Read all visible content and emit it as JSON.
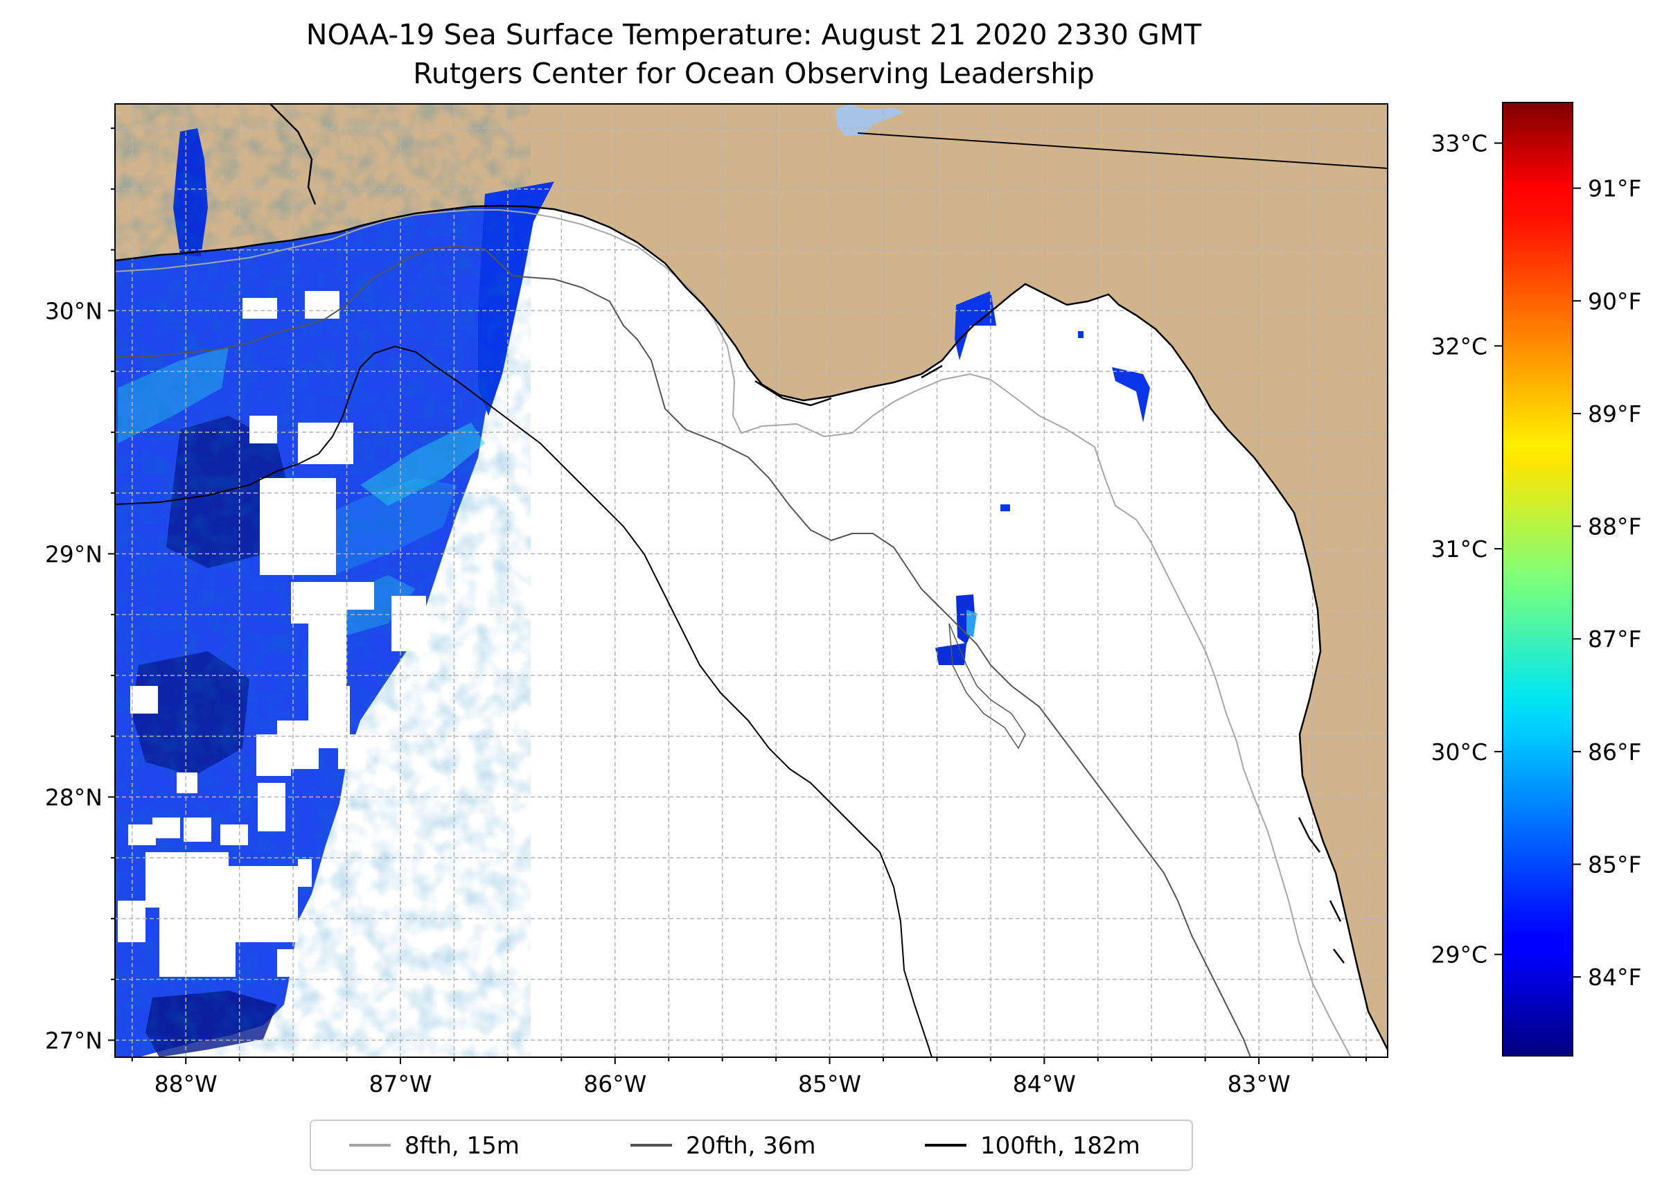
{
  "title": {
    "line1": "NOAA-19 Sea Surface Temperature: August 21 2020 2330 GMT",
    "line2": "Rutgers Center for Ocean Observing Leadership"
  },
  "map": {
    "lon_range": [
      -88.33,
      -82.4
    ],
    "lat_range": [
      26.93,
      30.85
    ],
    "lon_ticks": [
      {
        "value": -88,
        "label": "88°W"
      },
      {
        "value": -87,
        "label": "87°W"
      },
      {
        "value": -86,
        "label": "86°W"
      },
      {
        "value": -85,
        "label": "85°W"
      },
      {
        "value": -84,
        "label": "84°W"
      },
      {
        "value": -83,
        "label": "83°W"
      }
    ],
    "lat_ticks": [
      {
        "value": 30,
        "label": "30°N"
      },
      {
        "value": 29,
        "label": "29°N"
      },
      {
        "value": 28,
        "label": "28°N"
      },
      {
        "value": 27,
        "label": "27°N"
      }
    ],
    "gridline_step_deg": 0.25,
    "colors": {
      "land": "#d2b48c",
      "lake": "#a6c4e8",
      "ocean_nodata": "#ffffff",
      "grid": "#b5b5b5",
      "coast": "#000000"
    }
  },
  "colorbar": {
    "colormap": "jet",
    "range_c": [
      28.5,
      33.2
    ],
    "celsius_ticks": [
      {
        "value": 33,
        "label": "33°C"
      },
      {
        "value": 32,
        "label": "32°C"
      },
      {
        "value": 31,
        "label": "31°C"
      },
      {
        "value": 30,
        "label": "30°C"
      },
      {
        "value": 29,
        "label": "29°C"
      }
    ],
    "fahrenheit_ticks": [
      {
        "value": 91,
        "label": "91°F"
      },
      {
        "value": 90,
        "label": "90°F"
      },
      {
        "value": 89,
        "label": "89°F"
      },
      {
        "value": 88,
        "label": "88°F"
      },
      {
        "value": 87,
        "label": "87°F"
      },
      {
        "value": 86,
        "label": "86°F"
      },
      {
        "value": 85,
        "label": "85°F"
      },
      {
        "value": 84,
        "label": "84°F"
      }
    ]
  },
  "legend": {
    "items": [
      {
        "label": "8fth, 15m",
        "color": "#a6a6a6"
      },
      {
        "label": "20fth, 36m",
        "color": "#545454"
      },
      {
        "label": "100fth, 182m",
        "color": "#000000"
      }
    ]
  }
}
